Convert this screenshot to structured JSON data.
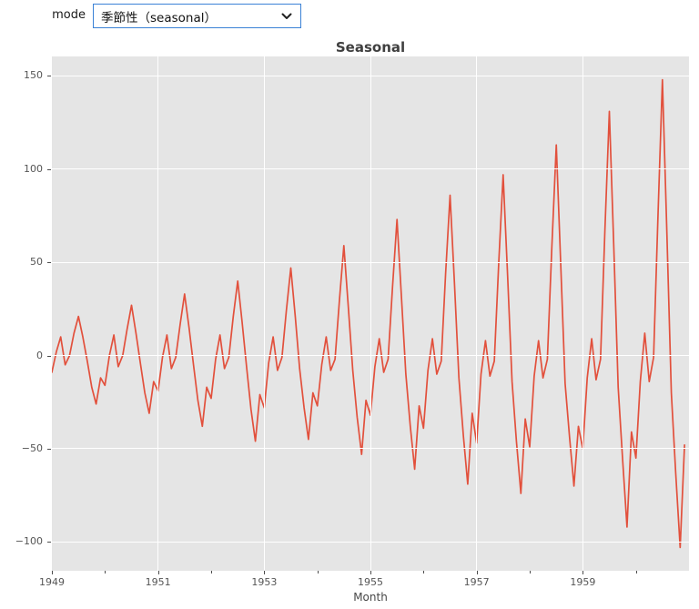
{
  "controls": {
    "mode_label": "mode",
    "mode_value": "季節性（seasonal）"
  },
  "figure_title": "Seasonal",
  "chart_data": {
    "type": "line",
    "title": "Seasonal",
    "xlabel": "Month",
    "ylabel": "",
    "x_start": "1949-01",
    "freq": "monthly",
    "n_points": 144,
    "values": [
      -9,
      2,
      10,
      -5,
      0,
      12,
      21,
      10,
      -3,
      -17,
      -26,
      -12,
      -16,
      0,
      11,
      -6,
      0,
      14,
      27,
      12,
      -4,
      -20,
      -31,
      -14,
      -19,
      -1,
      11,
      -7,
      -1,
      17,
      33,
      15,
      -5,
      -24,
      -38,
      -17,
      -23,
      -2,
      11,
      -7,
      -1,
      21,
      40,
      18,
      -6,
      -29,
      -46,
      -21,
      -28,
      -4,
      10,
      -8,
      -1,
      24,
      47,
      21,
      -7,
      -28,
      -45,
      -20,
      -27,
      -5,
      10,
      -8,
      -2,
      30,
      59,
      26,
      -8,
      -33,
      -53,
      -24,
      -32,
      -6,
      9,
      -9,
      -2,
      37,
      73,
      32,
      -10,
      -38,
      -61,
      -27,
      -39,
      -8,
      9,
      -10,
      -3,
      44,
      86,
      38,
      -12,
      -43,
      -69,
      -31,
      -47,
      -10,
      8,
      -11,
      -3,
      50,
      97,
      43,
      -14,
      -46,
      -74,
      -34,
      -49,
      -11,
      8,
      -12,
      -2,
      58,
      113,
      50,
      -15,
      -44,
      -70,
      -38,
      -50,
      -12,
      9,
      -13,
      -2,
      67,
      131,
      58,
      -17,
      -56,
      -92,
      -41,
      -55,
      -14,
      12,
      -14,
      -1,
      76,
      148,
      66,
      -20,
      -63,
      -103,
      -48
    ],
    "ylim": [
      -115.5,
      160.5
    ],
    "x_slots": 144,
    "yticks": [
      {
        "value": 150,
        "label": "150"
      },
      {
        "value": 100,
        "label": "100"
      },
      {
        "value": 50,
        "label": "50"
      },
      {
        "value": 0,
        "label": "0"
      },
      {
        "value": -50,
        "label": "−50"
      },
      {
        "value": -100,
        "label": "−100"
      }
    ],
    "xticks_major": [
      {
        "month": 0,
        "label": "1949"
      },
      {
        "month": 24,
        "label": "1951"
      },
      {
        "month": 48,
        "label": "1953"
      },
      {
        "month": 72,
        "label": "1955"
      },
      {
        "month": 96,
        "label": "1957"
      },
      {
        "month": 120,
        "label": "1959"
      }
    ],
    "xticks_minor_months": [
      12,
      36,
      60,
      84,
      108,
      132
    ],
    "grid": true,
    "legend": "none",
    "colors": {
      "line": "#e2503c",
      "plot_bg": "#e5e5e5",
      "grid": "#ffffff",
      "select_border": "#3b82d6"
    }
  }
}
